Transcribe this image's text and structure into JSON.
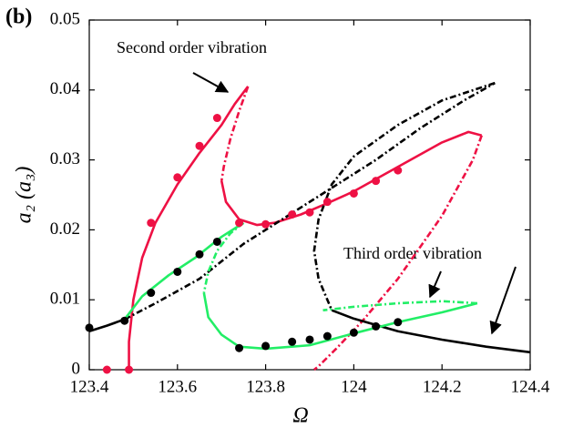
{
  "chart_data": {
    "type": "line",
    "panel_label": "(b)",
    "xlabel": "Ω",
    "ylabel": "a₂ (a₃)",
    "annotations": [
      "Second order vibration",
      "Third order vibration"
    ],
    "xlim": [
      123.4,
      124.4
    ],
    "xticks": [
      123.4,
      123.6,
      123.8,
      124,
      124.2,
      124.4
    ],
    "ylim": [
      0,
      0.05
    ],
    "yticks": [
      0,
      0.01,
      0.02,
      0.03,
      0.04,
      0.05
    ],
    "series": [
      {
        "color": "#ee1144",
        "style": "solid",
        "x": [
          123.49,
          123.49,
          123.5,
          123.52,
          123.55,
          123.6,
          123.65,
          123.7,
          123.73,
          123.76
        ],
        "values": [
          0,
          0.004,
          0.01,
          0.016,
          0.021,
          0.0265,
          0.031,
          0.035,
          0.038,
          0.0405
        ]
      },
      {
        "color": "#ee1144",
        "style": "dashed",
        "x": [
          123.76,
          123.74,
          123.72,
          123.705,
          123.7
        ],
        "values": [
          0.0405,
          0.037,
          0.033,
          0.029,
          0.027
        ]
      },
      {
        "color": "#ee1144",
        "style": "solid",
        "x": [
          123.7,
          123.71,
          123.74,
          123.78,
          123.82,
          123.88,
          123.94,
          124,
          124.1,
          124.2,
          124.26,
          124.29
        ],
        "values": [
          0.027,
          0.024,
          0.0215,
          0.0207,
          0.021,
          0.0222,
          0.0238,
          0.0255,
          0.029,
          0.0325,
          0.034,
          0.0335
        ]
      },
      {
        "color": "#ee1144",
        "style": "dashed",
        "x": [
          124.29,
          124.27,
          124.2,
          124.1,
          124.02,
          123.96,
          123.92,
          123.91
        ],
        "values": [
          0.0335,
          0.03,
          0.022,
          0.013,
          0.007,
          0.003,
          0.0005,
          0
        ]
      },
      {
        "color": "#000000",
        "style": "solid",
        "x": [
          123.4,
          123.44,
          123.48
        ],
        "values": [
          0.0055,
          0.0063,
          0.0072
        ]
      },
      {
        "color": "#000000",
        "style": "dashed",
        "x": [
          123.48,
          123.55,
          123.65,
          123.75,
          123.85,
          123.95,
          124.05,
          124.15,
          124.25,
          124.32
        ],
        "values": [
          0.0072,
          0.0095,
          0.013,
          0.018,
          0.022,
          0.026,
          0.03,
          0.0345,
          0.0385,
          0.041
        ]
      },
      {
        "color": "#000000",
        "style": "dashed",
        "x": [
          124.32,
          124.2,
          124.1,
          124,
          123.95,
          123.92,
          123.91,
          123.92,
          123.95
        ],
        "values": [
          0.041,
          0.0385,
          0.035,
          0.0305,
          0.0265,
          0.0215,
          0.017,
          0.013,
          0.0085
        ]
      },
      {
        "color": "#000000",
        "style": "solid",
        "x": [
          123.95,
          124,
          124.1,
          124.2,
          124.3,
          124.4
        ],
        "values": [
          0.0085,
          0.0073,
          0.0055,
          0.0043,
          0.0033,
          0.0025
        ]
      },
      {
        "color": "#22ee66",
        "style": "solid",
        "x": [
          123.48,
          123.52,
          123.58,
          123.64,
          123.7,
          123.75
        ],
        "values": [
          0.0072,
          0.0105,
          0.0135,
          0.016,
          0.019,
          0.021
        ]
      },
      {
        "color": "#22ee66",
        "style": "dashed",
        "x": [
          123.75,
          123.72,
          123.69,
          123.67,
          123.66
        ],
        "values": [
          0.021,
          0.0195,
          0.017,
          0.014,
          0.011
        ]
      },
      {
        "color": "#22ee66",
        "style": "solid",
        "x": [
          123.66,
          123.67,
          123.7,
          123.74,
          123.8,
          123.9,
          124,
          124.1,
          124.2,
          124.28
        ],
        "values": [
          0.011,
          0.0075,
          0.005,
          0.0033,
          0.003,
          0.0035,
          0.0052,
          0.0068,
          0.0082,
          0.0095
        ]
      },
      {
        "color": "#22ee66",
        "style": "dashed",
        "x": [
          124.28,
          124.2,
          124.1,
          124,
          123.93
        ],
        "values": [
          0.0095,
          0.0098,
          0.0095,
          0.009,
          0.0085
        ]
      },
      {
        "color": "#ee1144",
        "style": "markers",
        "x": [
          123.44,
          123.49,
          123.54,
          123.6,
          123.65,
          123.69,
          123.74,
          123.8,
          123.86,
          123.9,
          123.94,
          124,
          124.05,
          124.1
        ],
        "values": [
          0,
          0,
          0.021,
          0.0275,
          0.032,
          0.036,
          0.021,
          0.0208,
          0.0222,
          0.0225,
          0.024,
          0.0252,
          0.027,
          0.0285
        ]
      },
      {
        "color": "#000000",
        "style": "markers",
        "x": [
          123.4,
          123.48,
          123.54,
          123.6,
          123.65,
          123.69,
          123.74,
          123.8,
          123.86,
          123.9,
          123.94,
          124,
          124.05,
          124.1
        ],
        "values": [
          0.006,
          0.007,
          0.011,
          0.014,
          0.0165,
          0.0183,
          0.0031,
          0.0034,
          0.004,
          0.0043,
          0.0048,
          0.0053,
          0.0062,
          0.0068
        ]
      }
    ]
  }
}
